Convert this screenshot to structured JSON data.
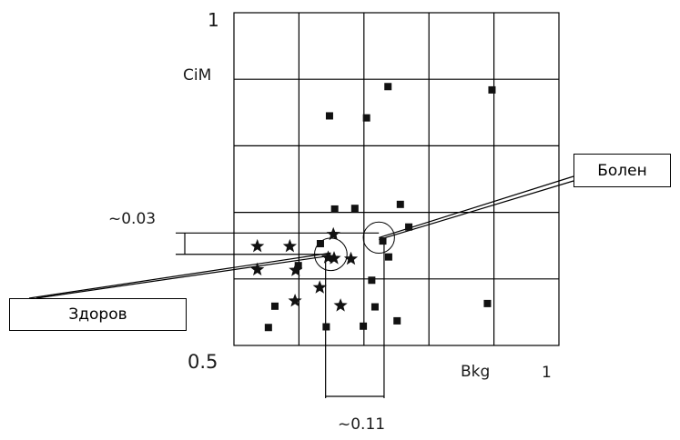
{
  "chart_data": {
    "type": "scatter",
    "x_axis": {
      "label": "Bkg",
      "min_label": "0.5",
      "max_label": "1",
      "range": [
        0.5,
        1.0
      ]
    },
    "y_axis": {
      "label": "CiM",
      "min_label": "0.5",
      "max_label": "1",
      "range": [
        0.5,
        1.0
      ]
    },
    "grid": true,
    "series": [
      {
        "marker": "square",
        "points": [
          [
            0.737,
            0.889
          ],
          [
            0.897,
            0.884
          ],
          [
            0.647,
            0.845
          ],
          [
            0.704,
            0.842
          ],
          [
            0.655,
            0.705
          ],
          [
            0.686,
            0.706
          ],
          [
            0.756,
            0.712
          ],
          [
            0.769,
            0.678
          ],
          [
            0.633,
            0.653
          ],
          [
            0.729,
            0.657
          ],
          [
            0.738,
            0.633
          ],
          [
            0.599,
            0.62
          ],
          [
            0.712,
            0.598
          ],
          [
            0.563,
            0.559
          ],
          [
            0.717,
            0.558
          ],
          [
            0.89,
            0.563
          ],
          [
            0.553,
            0.527
          ],
          [
            0.642,
            0.528
          ],
          [
            0.699,
            0.529
          ],
          [
            0.751,
            0.537
          ]
        ]
      },
      {
        "marker": "star",
        "points": [
          [
            0.536,
            0.649
          ],
          [
            0.586,
            0.649
          ],
          [
            0.653,
            0.667
          ],
          [
            0.645,
            0.632
          ],
          [
            0.68,
            0.63
          ],
          [
            0.536,
            0.614
          ],
          [
            0.595,
            0.613
          ],
          [
            0.632,
            0.587
          ],
          [
            0.594,
            0.567
          ],
          [
            0.664,
            0.56
          ],
          [
            0.654,
            0.631
          ]
        ]
      }
    ],
    "circles": [
      {
        "cx": 0.723,
        "cy": 0.662,
        "r": 0.024
      },
      {
        "cx": 0.649,
        "cy": 0.637,
        "r": 0.025
      }
    ],
    "annotations": {
      "healthy": "Здоров",
      "sick": "Болен",
      "dy_label": "~0.03",
      "dx_label": "~0.11"
    }
  }
}
